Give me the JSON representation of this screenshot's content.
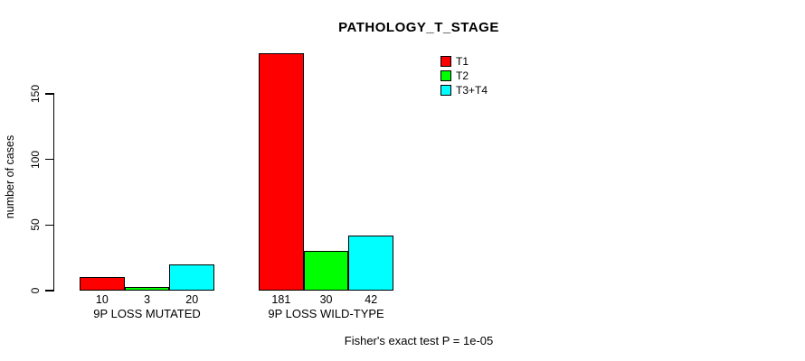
{
  "title": "PATHOLOGY_T_STAGE",
  "footer": "Fisher's exact test P = 1e-05",
  "chart_data": {
    "type": "bar",
    "title": "PATHOLOGY_T_STAGE",
    "xlabel": "",
    "ylabel": "number of cases",
    "ylim": [
      0,
      150
    ],
    "y_ticks": [
      0,
      50,
      100,
      150
    ],
    "grid": false,
    "legend_position": "inside-top-right",
    "categories": [
      "9P LOSS MUTATED",
      "9P LOSS WILD-TYPE"
    ],
    "series": [
      {
        "name": "T1",
        "color": "#FF0000",
        "values": [
          10,
          181
        ]
      },
      {
        "name": "T2",
        "color": "#00FF00",
        "values": [
          3,
          30
        ]
      },
      {
        "name": "T3+T4",
        "color": "#00FFFF",
        "values": [
          20,
          42
        ]
      }
    ],
    "bar_value_labels": [
      [
        10,
        3,
        20
      ],
      [
        181,
        30,
        42
      ]
    ],
    "annotation": "Fisher's exact test P = 1e-05"
  }
}
